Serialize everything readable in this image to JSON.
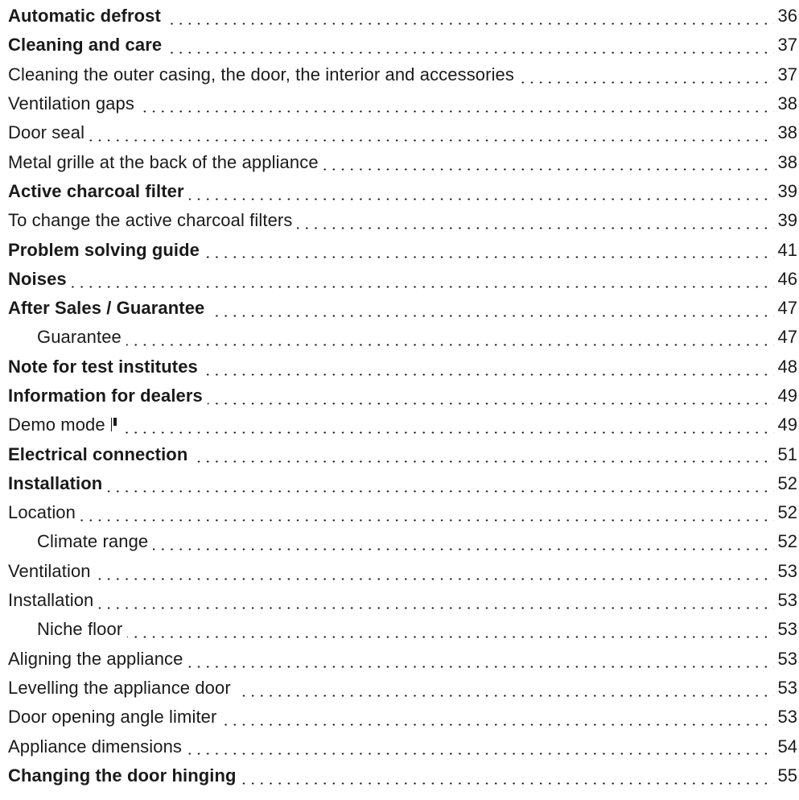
{
  "toc": [
    {
      "title": "Automatic defrost",
      "page": "36",
      "bold": true,
      "indent": false
    },
    {
      "title": "Cleaning and care",
      "page": "37",
      "bold": true,
      "indent": false
    },
    {
      "title": "Cleaning the outer casing, the door, the interior and accessories",
      "page": "37",
      "bold": false,
      "indent": false
    },
    {
      "title": "Ventilation gaps",
      "page": "38",
      "bold": false,
      "indent": false
    },
    {
      "title": "Door seal",
      "page": "38",
      "bold": false,
      "indent": false
    },
    {
      "title": "Metal grille at the back of the appliance",
      "page": "38",
      "bold": false,
      "indent": false
    },
    {
      "title": "Active charcoal filter",
      "page": "39",
      "bold": true,
      "indent": false
    },
    {
      "title": "To change the active charcoal filters",
      "page": "39",
      "bold": false,
      "indent": false
    },
    {
      "title": "Problem solving guide",
      "page": "41",
      "bold": true,
      "indent": false
    },
    {
      "title": "Noises",
      "page": "46",
      "bold": true,
      "indent": false
    },
    {
      "title": "After Sales / Guarantee",
      "page": "47",
      "bold": true,
      "indent": false
    },
    {
      "title": "Guarantee",
      "page": "47",
      "bold": false,
      "indent": true
    },
    {
      "title": "Note for test institutes",
      "page": "48",
      "bold": true,
      "indent": false
    },
    {
      "title": "Information for dealers",
      "page": "49",
      "bold": true,
      "indent": false
    },
    {
      "title": "Demo mode",
      "page": "49",
      "bold": false,
      "indent": false,
      "icon": "demo-mode-icon"
    },
    {
      "title": "Electrical connection",
      "page": "51",
      "bold": true,
      "indent": false
    },
    {
      "title": "Installation",
      "page": "52",
      "bold": true,
      "indent": false
    },
    {
      "title": "Location",
      "page": "52",
      "bold": false,
      "indent": false
    },
    {
      "title": "Climate range",
      "page": "52",
      "bold": false,
      "indent": true
    },
    {
      "title": "Ventilation",
      "page": "53",
      "bold": false,
      "indent": false
    },
    {
      "title": "Installation",
      "page": "53",
      "bold": false,
      "indent": false
    },
    {
      "title": "Niche floor",
      "page": "53",
      "bold": false,
      "indent": true
    },
    {
      "title": "Aligning the appliance",
      "page": "53",
      "bold": false,
      "indent": false
    },
    {
      "title": "Levelling the appliance door",
      "page": "53",
      "bold": false,
      "indent": false
    },
    {
      "title": "Door opening angle limiter",
      "page": "53",
      "bold": false,
      "indent": false
    },
    {
      "title": "Appliance dimensions",
      "page": "54",
      "bold": false,
      "indent": false
    },
    {
      "title": "Changing the door hinging",
      "page": "55",
      "bold": true,
      "indent": false
    }
  ]
}
